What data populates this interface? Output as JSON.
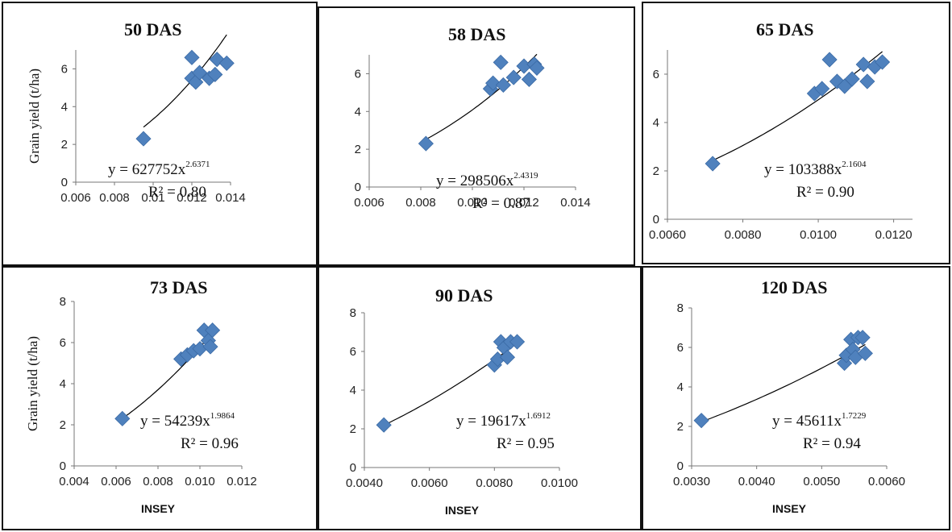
{
  "chart_data": [
    {
      "type": "scatter",
      "title": "50 DAS",
      "ylabel": "Grain yield (t/ha)",
      "xlabel": "",
      "xlim": [
        0.006,
        0.014
      ],
      "ylim": [
        0,
        7
      ],
      "xticks": [
        "0.006",
        "0.008",
        "0.01",
        "0.012",
        "0.014"
      ],
      "yticks": [
        "0",
        "2",
        "4",
        "6"
      ],
      "points": [
        {
          "x": 0.0095,
          "y": 2.3
        },
        {
          "x": 0.012,
          "y": 6.6
        },
        {
          "x": 0.012,
          "y": 5.5
        },
        {
          "x": 0.0122,
          "y": 5.3
        },
        {
          "x": 0.0124,
          "y": 5.8
        },
        {
          "x": 0.0129,
          "y": 5.5
        },
        {
          "x": 0.0132,
          "y": 5.7
        },
        {
          "x": 0.0133,
          "y": 6.5
        },
        {
          "x": 0.0138,
          "y": 6.3
        }
      ],
      "trendline": {
        "type": "power",
        "a": 627752,
        "b": 2.6371,
        "x_range": [
          0.0095,
          0.0138
        ]
      },
      "equation": {
        "base": "y = 627752x",
        "exponent": "2.6371"
      },
      "r2": "R² = 0.80"
    },
    {
      "type": "scatter",
      "title": "58 DAS",
      "ylabel": "",
      "xlabel": "",
      "xlim": [
        0.006,
        0.014
      ],
      "ylim": [
        0,
        7
      ],
      "xticks": [
        "0.006",
        "0.008",
        "0.010",
        "0.012",
        "0.014"
      ],
      "yticks": [
        "0",
        "2",
        "4",
        "6"
      ],
      "points": [
        {
          "x": 0.0082,
          "y": 2.3
        },
        {
          "x": 0.0107,
          "y": 5.2
        },
        {
          "x": 0.0108,
          "y": 5.5
        },
        {
          "x": 0.0111,
          "y": 6.6
        },
        {
          "x": 0.0112,
          "y": 5.4
        },
        {
          "x": 0.0116,
          "y": 5.8
        },
        {
          "x": 0.012,
          "y": 6.4
        },
        {
          "x": 0.0122,
          "y": 5.7
        },
        {
          "x": 0.0124,
          "y": 6.5
        },
        {
          "x": 0.0125,
          "y": 6.3
        }
      ],
      "trendline": {
        "type": "power",
        "a": 298506,
        "b": 2.4319,
        "x_range": [
          0.0082,
          0.0125
        ]
      },
      "equation": {
        "base": "y = 298506x",
        "exponent": "2.4319"
      },
      "r2": "R² = 0.87"
    },
    {
      "type": "scatter",
      "title": "65 DAS",
      "ylabel": "",
      "xlabel": "",
      "xlim": [
        0.006,
        0.0125
      ],
      "ylim": [
        0,
        7
      ],
      "xticks": [
        "0.0060",
        "0.0080",
        "0.0100",
        "0.0120"
      ],
      "yticks": [
        "0",
        "2",
        "4",
        "6"
      ],
      "points": [
        {
          "x": 0.0072,
          "y": 2.3
        },
        {
          "x": 0.0099,
          "y": 5.2
        },
        {
          "x": 0.0101,
          "y": 5.4
        },
        {
          "x": 0.0103,
          "y": 6.6
        },
        {
          "x": 0.0105,
          "y": 5.7
        },
        {
          "x": 0.0107,
          "y": 5.5
        },
        {
          "x": 0.0109,
          "y": 5.8
        },
        {
          "x": 0.0112,
          "y": 6.4
        },
        {
          "x": 0.0113,
          "y": 5.7
        },
        {
          "x": 0.0115,
          "y": 6.3
        },
        {
          "x": 0.0117,
          "y": 6.5
        }
      ],
      "trendline": {
        "type": "power",
        "a": 103388,
        "b": 2.1604,
        "x_range": [
          0.0072,
          0.0117
        ]
      },
      "equation": {
        "base": "y = 103388x",
        "exponent": "2.1604"
      },
      "r2": "R² = 0.90"
    },
    {
      "type": "scatter",
      "title": "73 DAS",
      "ylabel": "Grain yield (t/ha)",
      "xlabel": "INSEY",
      "xlim": [
        0.004,
        0.012
      ],
      "ylim": [
        0,
        8
      ],
      "xticks": [
        "0.004",
        "0.006",
        "0.008",
        "0.010",
        "0.012"
      ],
      "yticks": [
        "0",
        "2",
        "4",
        "6",
        "8"
      ],
      "points": [
        {
          "x": 0.0063,
          "y": 2.3
        },
        {
          "x": 0.0091,
          "y": 5.2
        },
        {
          "x": 0.0094,
          "y": 5.4
        },
        {
          "x": 0.0097,
          "y": 5.6
        },
        {
          "x": 0.01,
          "y": 5.7
        },
        {
          "x": 0.0102,
          "y": 6.6
        },
        {
          "x": 0.0104,
          "y": 6.1
        },
        {
          "x": 0.0105,
          "y": 5.8
        },
        {
          "x": 0.0106,
          "y": 6.6
        }
      ],
      "trendline": {
        "type": "power",
        "a": 54239,
        "b": 1.9864,
        "x_range": [
          0.0063,
          0.0106
        ]
      },
      "equation": {
        "base": "y = 54239x",
        "exponent": "1.9864"
      },
      "r2": "R² = 0.96"
    },
    {
      "type": "scatter",
      "title": "90 DAS",
      "ylabel": "",
      "xlabel": "INSEY",
      "xlim": [
        0.004,
        0.01
      ],
      "ylim": [
        0,
        8
      ],
      "xticks": [
        "0.0040",
        "0.0060",
        "0.0080",
        "0.0100"
      ],
      "yticks": [
        "0",
        "2",
        "4",
        "6",
        "8"
      ],
      "points": [
        {
          "x": 0.0046,
          "y": 2.2
        },
        {
          "x": 0.008,
          "y": 5.3
        },
        {
          "x": 0.0081,
          "y": 5.6
        },
        {
          "x": 0.0082,
          "y": 6.5
        },
        {
          "x": 0.0083,
          "y": 6.2
        },
        {
          "x": 0.0084,
          "y": 5.7
        },
        {
          "x": 0.0085,
          "y": 6.5
        },
        {
          "x": 0.0087,
          "y": 6.5
        }
      ],
      "trendline": {
        "type": "power",
        "a": 19617,
        "b": 1.6912,
        "x_range": [
          0.0046,
          0.0087
        ]
      },
      "equation": {
        "base": "y = 19617x",
        "exponent": "1.6912"
      },
      "r2": "R² = 0.95"
    },
    {
      "type": "scatter",
      "title": "120 DAS",
      "ylabel": "",
      "xlabel": "INSEY",
      "xlim": [
        0.003,
        0.006
      ],
      "ylim": [
        0,
        8
      ],
      "xticks": [
        "0.0030",
        "0.0040",
        "0.0050",
        "0.0060"
      ],
      "yticks": [
        "0",
        "2",
        "4",
        "6",
        "8"
      ],
      "points": [
        {
          "x": 0.00315,
          "y": 2.3
        },
        {
          "x": 0.00535,
          "y": 5.2
        },
        {
          "x": 0.00538,
          "y": 5.6
        },
        {
          "x": 0.00545,
          "y": 6.4
        },
        {
          "x": 0.00548,
          "y": 5.9
        },
        {
          "x": 0.00552,
          "y": 5.5
        },
        {
          "x": 0.00556,
          "y": 6.5
        },
        {
          "x": 0.00563,
          "y": 6.5
        },
        {
          "x": 0.00567,
          "y": 5.7
        }
      ],
      "trendline": {
        "type": "power",
        "a": 45611,
        "b": 1.7229,
        "x_range": [
          0.00315,
          0.00567
        ]
      },
      "equation": {
        "base": "y = 45611x",
        "exponent": "1.7229"
      },
      "r2": "R² = 0.94"
    }
  ],
  "colors": {
    "marker": "#4f81bd",
    "marker_stroke": "#3a6aa5",
    "trendline": "#000000",
    "axis": "#777777"
  }
}
